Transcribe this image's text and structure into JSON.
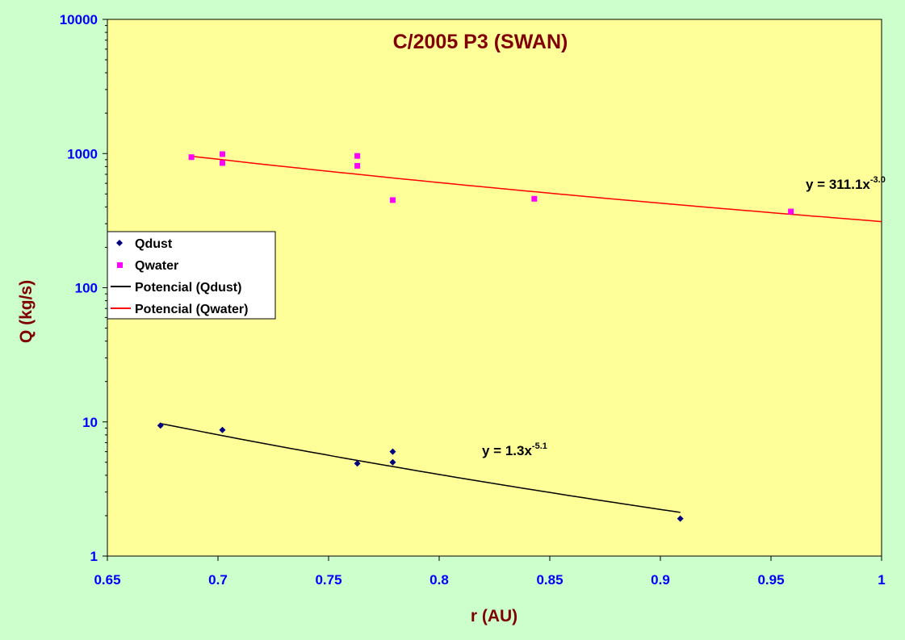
{
  "chart_data": {
    "type": "scatter",
    "title": "C/2005 P3 (SWAN)",
    "xlabel": "r (AU)",
    "ylabel": "Q (kg/s)",
    "xlim": [
      0.65,
      1
    ],
    "ylim": [
      1,
      10000
    ],
    "yscale": "log",
    "x_ticks": [
      "0.65",
      "0.7",
      "0.75",
      "0.8",
      "0.85",
      "0.9",
      "0.95",
      "1"
    ],
    "y_ticks": [
      "1",
      "10",
      "100",
      "1000",
      "10000"
    ],
    "grid": false,
    "legend_position": "left-middle",
    "series": [
      {
        "name": "Qdust",
        "marker": "diamond",
        "color": "#000080",
        "points": [
          {
            "x": 0.674,
            "y": 9.4
          },
          {
            "x": 0.702,
            "y": 8.7
          },
          {
            "x": 0.763,
            "y": 4.9
          },
          {
            "x": 0.779,
            "y": 6.0
          },
          {
            "x": 0.779,
            "y": 5.0
          },
          {
            "x": 0.909,
            "y": 1.9
          }
        ]
      },
      {
        "name": "Qwater",
        "marker": "square",
        "color": "#ff00ff",
        "points": [
          {
            "x": 0.688,
            "y": 940
          },
          {
            "x": 0.702,
            "y": 990
          },
          {
            "x": 0.702,
            "y": 850
          },
          {
            "x": 0.763,
            "y": 960
          },
          {
            "x": 0.763,
            "y": 810
          },
          {
            "x": 0.779,
            "y": 450
          },
          {
            "x": 0.843,
            "y": 460
          },
          {
            "x": 0.959,
            "y": 370
          }
        ]
      }
    ],
    "trendlines": [
      {
        "name": "Potencial (Qdust)",
        "color": "#000000",
        "equation_prefix": "y = 1.3x",
        "equation_exponent": "-5.1",
        "a": 1.3,
        "b": -5.1,
        "x_range": [
          0.674,
          0.909
        ]
      },
      {
        "name": "Potencial (Qwater)",
        "color": "#ff0000",
        "equation_prefix": "y = 311.1x",
        "equation_exponent": "-3.0",
        "a": 311.1,
        "b": -3.0,
        "x_range": [
          0.688,
          1
        ]
      }
    ],
    "colors": {
      "page_background": "#ccffcc",
      "plot_background": "#ffff99",
      "title": "#800000",
      "tick_labels": "#0000ff"
    }
  }
}
